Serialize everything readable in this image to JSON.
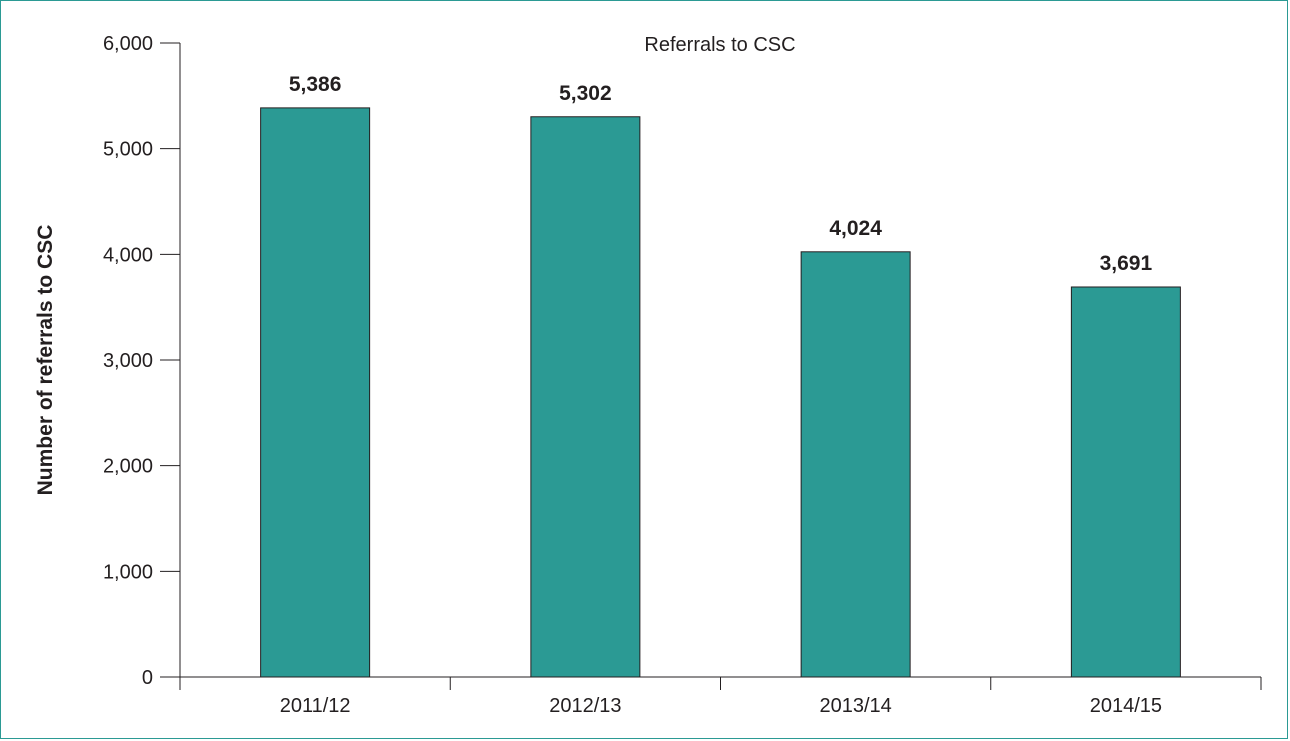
{
  "chart_data": {
    "type": "bar",
    "title": "Referrals to CSC",
    "xlabel": "",
    "ylabel": "Number of referrals to CSC",
    "categories": [
      "2011/12",
      "2012/13",
      "2013/14",
      "2014/15"
    ],
    "values": [
      5386,
      5302,
      4024,
      3691
    ],
    "value_labels": [
      "5,386",
      "5,302",
      "4,024",
      "3,691"
    ],
    "ylim": [
      0,
      6000
    ],
    "y_ticks": [
      0,
      1000,
      2000,
      3000,
      4000,
      5000,
      6000
    ],
    "y_tick_labels": [
      "0",
      "1,000",
      "2,000",
      "3,000",
      "4,000",
      "5,000",
      "6,000"
    ],
    "grid": false,
    "legend": "none",
    "colors": {
      "bar": "#2b9a94",
      "bar_outline": "#231f20",
      "frame": "#2b9a94",
      "axis": "#231f20"
    }
  }
}
